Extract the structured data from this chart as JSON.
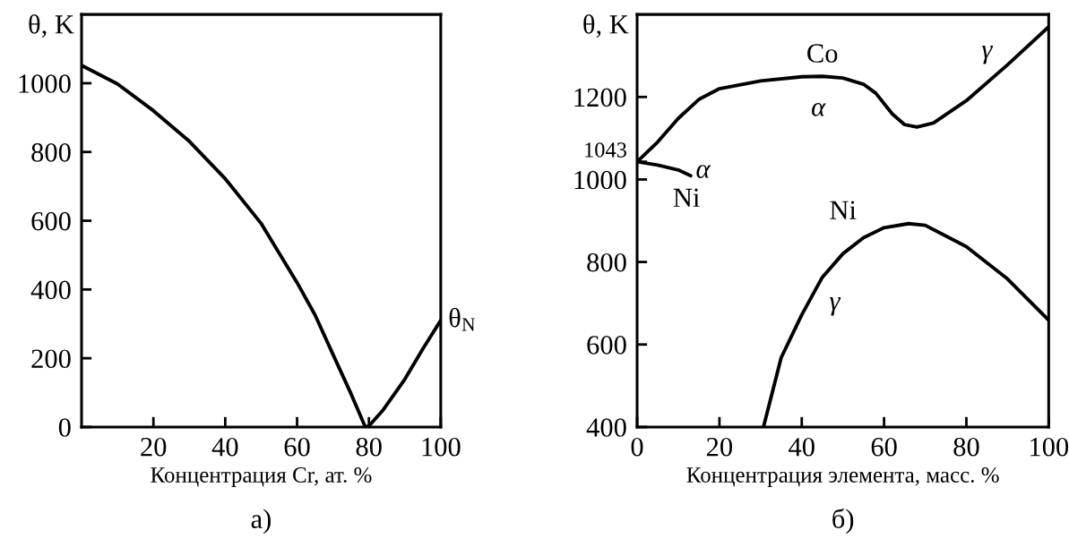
{
  "chart_data": [
    {
      "type": "line",
      "xlabel": "Концентрация Cr, ат. %",
      "ylabel": "θ, K",
      "xlim": [
        0,
        100
      ],
      "ylim": [
        0,
        1200
      ],
      "xticks": [
        20,
        40,
        60,
        80,
        100
      ],
      "yticks": [
        0,
        200,
        400,
        600,
        800,
        1000
      ],
      "grid": false,
      "series": [
        {
          "color": "#000000",
          "x": [
            0,
            10,
            20,
            30,
            40,
            50,
            60,
            65,
            70,
            75,
            79,
            80,
            84,
            90,
            95,
            100
          ],
          "values": [
            1052,
            998,
            920,
            831,
            722,
            592,
            420,
            326,
            211,
            97,
            0,
            3,
            50,
            139,
            227,
            310
          ]
        }
      ],
      "annotations": [
        {
          "text": "θ$_{N}$",
          "x": 100,
          "y": 310
        },
        "а)"
      ]
    },
    {
      "type": "line",
      "xlabel": "Концентрация элемента, масс. %",
      "ylabel": "θ, K",
      "xlim": [
        0,
        100
      ],
      "ylim": [
        400,
        1400
      ],
      "xticks": [
        0,
        20,
        40,
        60,
        80,
        100
      ],
      "yticks": [
        400,
        600,
        800,
        1000,
        {
          "value": 1043,
          "label": "1043"
        },
        1200
      ],
      "grid": false,
      "series": [
        {
          "color": "#000000",
          "x": [
            0,
            5,
            10,
            15,
            20,
            30,
            40,
            45,
            50,
            55,
            58,
            62,
            65,
            68,
            72,
            80,
            90,
            100
          ],
          "values": [
            1043,
            1091,
            1148,
            1194,
            1220,
            1239,
            1249,
            1250,
            1246,
            1231,
            1209,
            1159,
            1133,
            1127,
            1137,
            1191,
            1278,
            1370
          ]
        },
        {
          "color": "#000000",
          "x": [
            0,
            5,
            10,
            13
          ],
          "values": [
            1043,
            1035,
            1023,
            1009
          ]
        },
        {
          "color": "#000000",
          "x": [
            30.7,
            35,
            40,
            45,
            50,
            55,
            60,
            66,
            70,
            80,
            90,
            100
          ],
          "values": [
            400,
            568,
            672,
            763,
            820,
            859,
            883,
            893,
            889,
            837,
            759,
            659
          ]
        }
      ],
      "annotations": [
        "Co",
        "α",
        "γ",
        "α",
        "Ni",
        "Ni",
        "γ",
        "б)"
      ]
    }
  ]
}
